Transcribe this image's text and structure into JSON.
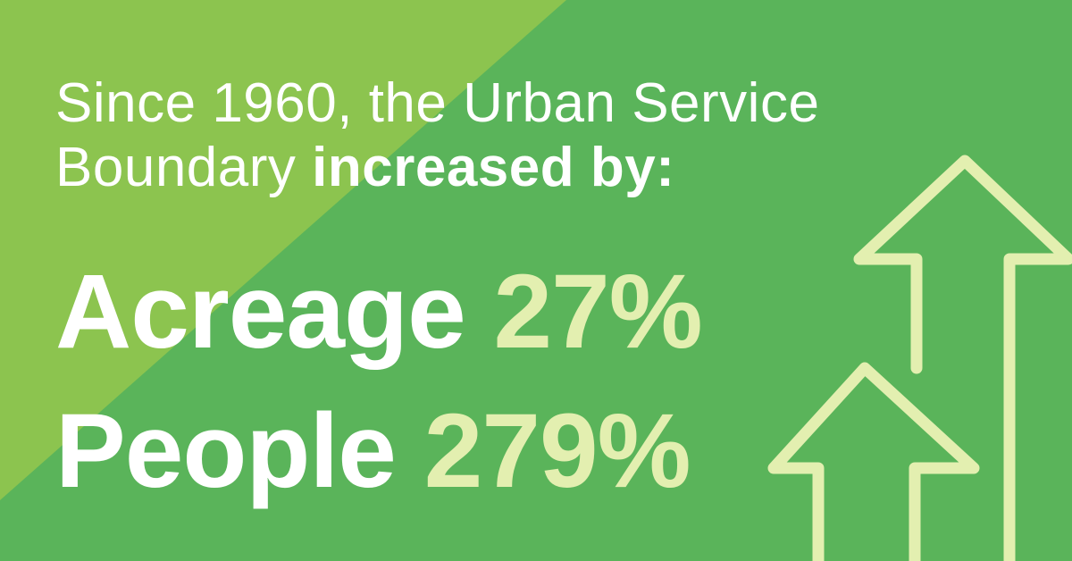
{
  "headline": {
    "line1": "Since 1960, the Urban Service",
    "line2_regular": "Boundary ",
    "line2_bold": "increased by:"
  },
  "stats": [
    {
      "label": "Acreage",
      "value": "27%"
    },
    {
      "label": "People",
      "value": "279%"
    }
  ],
  "colors": {
    "background_main": "#5ab45a",
    "background_corner": "#8cc44f",
    "text_primary": "#ffffff",
    "text_accent": "#e3efb0",
    "arrow_stroke": "#e3efb0"
  },
  "icons": [
    "up-arrow-icon",
    "up-arrow-icon"
  ]
}
